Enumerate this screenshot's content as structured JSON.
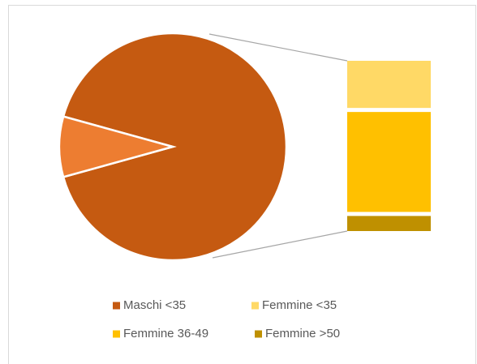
{
  "chart_data": {
    "type": "bar-of-pie",
    "categories": [
      "Maschi <35",
      "Femmine <35",
      "Femmine 36-49",
      "Femmine >50"
    ],
    "values": [
      91.4,
      2.5,
      5.3,
      0.8
    ],
    "colors": [
      "#c55a11",
      "#ffd966",
      "#ffc000",
      "#bf9000"
    ],
    "other_color": "#ed7d31"
  }
}
